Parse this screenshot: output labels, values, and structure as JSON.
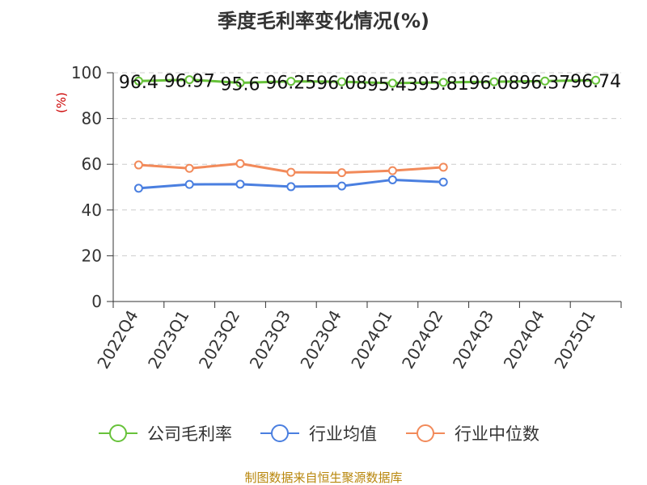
{
  "chart_data": {
    "type": "line",
    "title": "季度毛利率变化情况(%)",
    "unit_label": "(%)",
    "categories": [
      "2022Q4",
      "2023Q1",
      "2023Q2",
      "2023Q3",
      "2023Q4",
      "2024Q1",
      "2024Q2",
      "2024Q3",
      "2024Q4",
      "2025Q1"
    ],
    "ylim": [
      0,
      100
    ],
    "yticks": [
      0,
      20,
      40,
      60,
      80,
      100
    ],
    "grid": true,
    "legend_position": "bottom",
    "series": [
      {
        "name": "公司毛利率",
        "color": "#67c23a",
        "values": [
          96.4,
          96.97,
          95.6,
          96.25,
          96.08,
          95.43,
          95.81,
          96.08,
          96.37,
          96.74
        ],
        "labels": [
          "96.4",
          "96.97",
          "95.6",
          "96.25",
          "96.08",
          "95.43",
          "95.81",
          "96.08",
          "96.37",
          "96.74"
        ]
      },
      {
        "name": "行业均值",
        "color": "#4a7fe0",
        "values": [
          49.5,
          51.2,
          51.3,
          50.2,
          50.5,
          53.2,
          52.2,
          null,
          null,
          null
        ]
      },
      {
        "name": "行业中位数",
        "color": "#f28a5a",
        "values": [
          59.7,
          58.2,
          60.3,
          56.5,
          56.3,
          57.2,
          58.7,
          null,
          null,
          null
        ]
      }
    ]
  },
  "source_text": "制图数据来自恒生聚源数据库"
}
